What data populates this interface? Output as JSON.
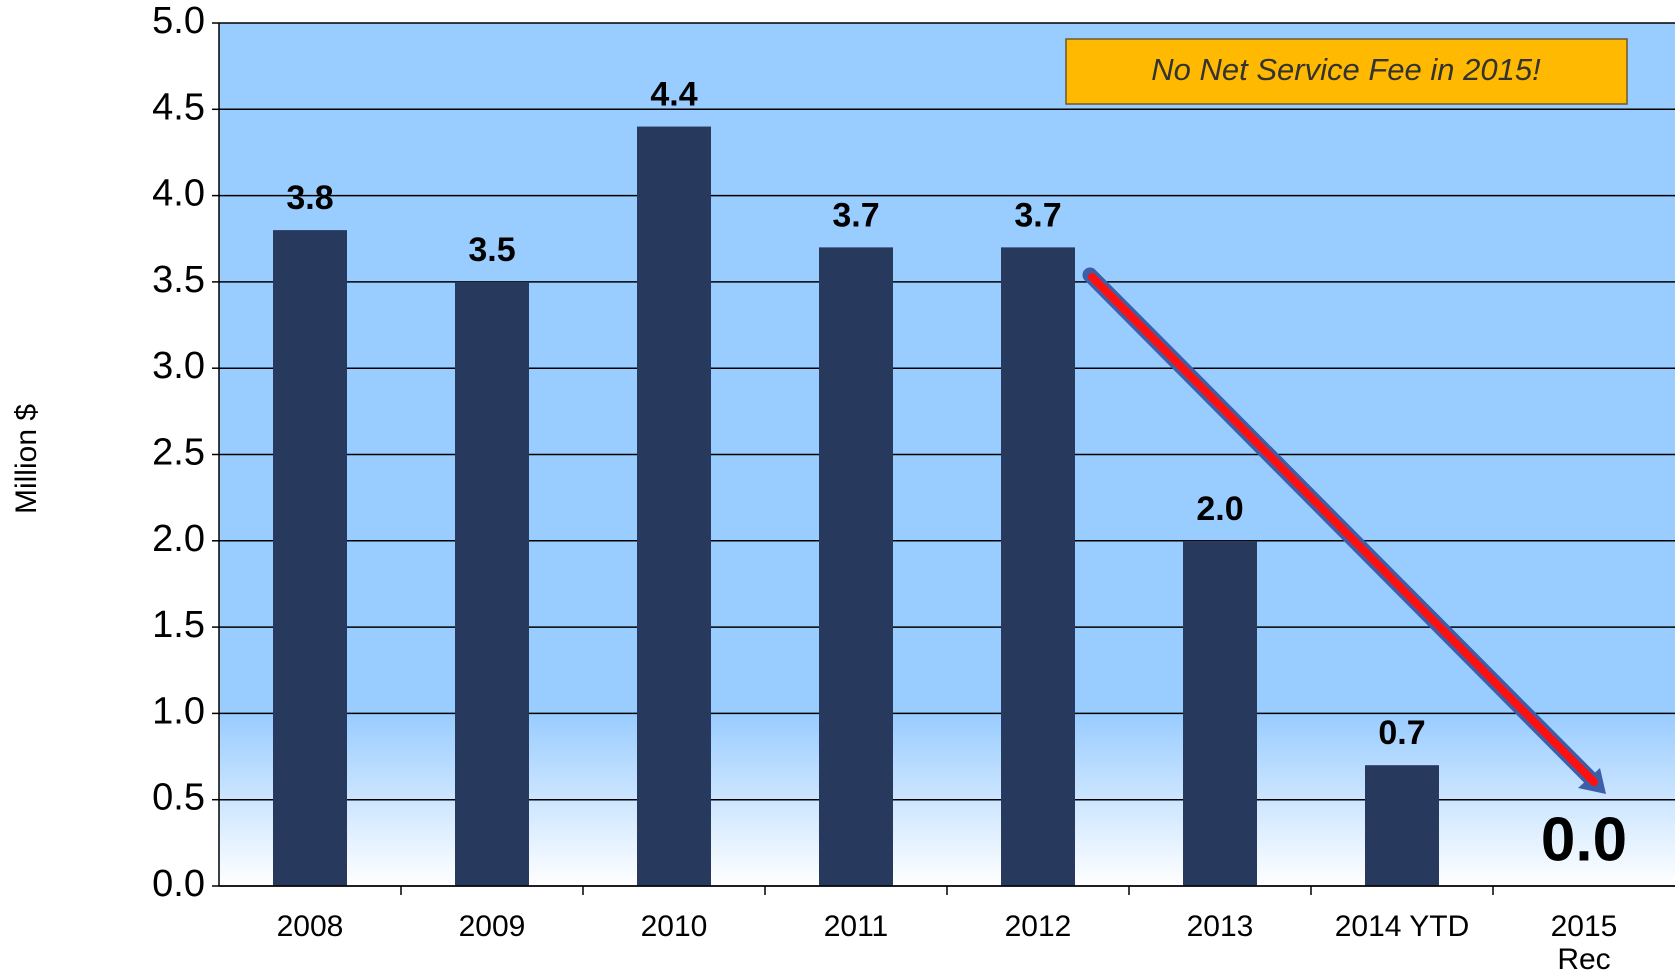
{
  "chart_data": {
    "type": "bar",
    "y_label": "Million $",
    "annotation": "No Net Service Fee in 2015!",
    "categories": [
      "2008",
      "2009",
      "2010",
      "2011",
      "2012",
      "2013",
      "2014 YTD",
      "2015\nRec"
    ],
    "values": [
      3.8,
      3.5,
      4.4,
      3.7,
      3.7,
      2.0,
      0.7,
      0.0
    ],
    "value_labels": [
      "3.8",
      "3.5",
      "4.4",
      "3.7",
      "3.7",
      "2.0",
      "0.7",
      "0.0"
    ],
    "color": "#27395c",
    "ylim": [
      0,
      5
    ],
    "yticks": [
      {
        "value": 0,
        "label": "0.0"
      },
      0.5,
      {
        "value": 1,
        "label": "1.0"
      },
      1.5,
      {
        "value": 2,
        "label": "2.0"
      },
      2.5,
      {
        "value": 3,
        "label": "3.0"
      },
      3.5,
      {
        "value": 4,
        "label": "4.0"
      },
      4.5,
      {
        "value": 5,
        "label": "5.0"
      }
    ],
    "grid": true
  }
}
